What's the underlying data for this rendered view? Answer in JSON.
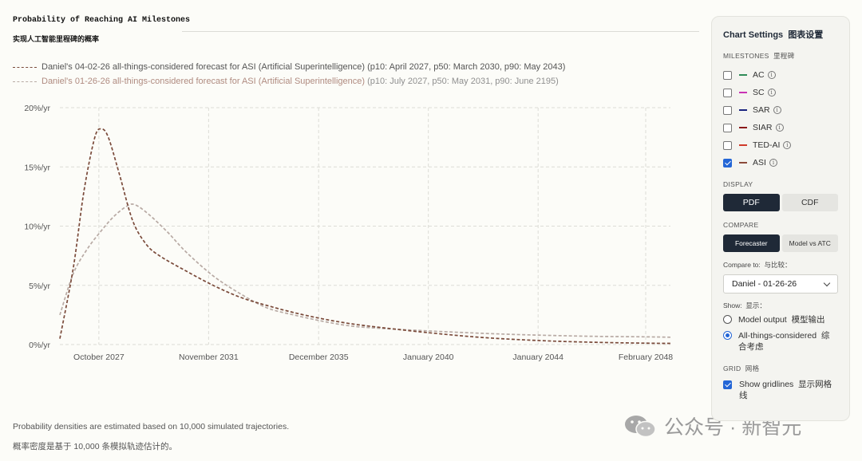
{
  "header": {
    "title": "Probability of Reaching AI Milestones",
    "subtitle": "实现人工智能里程碑的概率"
  },
  "legend": [
    {
      "name": "Daniel's 04-02-26 all-things-considered forecast for ASI (Artificial Superintelligence)",
      "detail": "(p10: April 2027, p50: March 2030, p90: May 2043)"
    },
    {
      "name": "Daniel's 01-26-26 all-things-considered forecast for ASI (Artificial Superintelligence)",
      "detail": "(p10: July 2027, p50: May 2031, p90: June 2195)"
    }
  ],
  "footnotes": {
    "en": "Probability densities are estimated based on 10,000 simulated trajectories.",
    "zh": "概率密度是基于 10,000 条模拟轨迹估计的。"
  },
  "watermark": "公众号 · 新智元",
  "colors": {
    "series1": "#7a4a3a",
    "series2": "#b8aaa4",
    "grid": "#dcdcd6",
    "accent": "#2466d6",
    "dark": "#1f2937"
  },
  "settings": {
    "title": "Chart Settings",
    "title_zh": "图表设置",
    "milestones_label": "MILESTONES",
    "milestones_label_zh": "里程碑",
    "milestones": [
      {
        "label": "AC",
        "color": "#2e8b57",
        "checked": false
      },
      {
        "label": "SC",
        "color": "#c832b4",
        "checked": false
      },
      {
        "label": "SAR",
        "color": "#1a237e",
        "checked": false
      },
      {
        "label": "SIAR",
        "color": "#8b1a1a",
        "checked": false
      },
      {
        "label": "TED-AI",
        "color": "#d03a2a",
        "checked": false
      },
      {
        "label": "ASI",
        "color": "#8b4a3a",
        "checked": true
      }
    ],
    "display_label": "DISPLAY",
    "display_options": [
      "PDF",
      "CDF"
    ],
    "display_selected": "PDF",
    "compare_label": "COMPARE",
    "compare_options": [
      "Forecaster",
      "Model vs ATC"
    ],
    "compare_selected": "Forecaster",
    "compare_to_label": "Compare to:",
    "compare_to_label_zh": "与比较：",
    "compare_to_value": "Daniel - 01-26-26",
    "show_label": "Show:",
    "show_label_zh": "显示：",
    "show_options": [
      {
        "label": "Model output",
        "label_zh": "模型输出",
        "selected": false
      },
      {
        "label": "All-things-considered",
        "label_zh": "综合考虑",
        "selected": true
      }
    ],
    "grid_label": "GRID",
    "grid_label_zh": "网格",
    "gridlines_label": "Show gridlines",
    "gridlines_label_zh": "显示网格线",
    "gridlines_checked": true
  },
  "chart_data": {
    "type": "line",
    "title": "Probability of Reaching AI Milestones",
    "ylabel": "",
    "xlabel": "",
    "ylim": [
      0,
      20
    ],
    "xlim": [
      2026.3,
      2049.0
    ],
    "grid": true,
    "legend_position": "top-left",
    "y_ticks": [
      {
        "value": 0,
        "label": "0%/yr"
      },
      {
        "value": 5,
        "label": "5%/yr"
      },
      {
        "value": 10,
        "label": "10%/yr"
      },
      {
        "value": 15,
        "label": "15%/yr"
      },
      {
        "value": 20,
        "label": "20%/yr"
      }
    ],
    "x_ticks": [
      {
        "value": 2027.75,
        "label": "October 2027"
      },
      {
        "value": 2031.83,
        "label": "November 2031"
      },
      {
        "value": 2035.92,
        "label": "December 2035"
      },
      {
        "value": 2040.0,
        "label": "January 2040"
      },
      {
        "value": 2044.08,
        "label": "January 2044"
      },
      {
        "value": 2048.08,
        "label": "February 2048"
      }
    ],
    "series": [
      {
        "name": "Daniel's 04-02-26 all-things-considered forecast for ASI (Artificial Superintelligence)",
        "dash": "dashed",
        "points": [
          [
            2026.3,
            0.5
          ],
          [
            2026.8,
            6.5
          ],
          [
            2027.2,
            13.0
          ],
          [
            2027.6,
            17.5
          ],
          [
            2027.85,
            18.2
          ],
          [
            2028.1,
            17.5
          ],
          [
            2028.5,
            14.5
          ],
          [
            2029.0,
            10.5
          ],
          [
            2029.5,
            8.5
          ],
          [
            2030.0,
            7.5
          ],
          [
            2031.0,
            6.2
          ],
          [
            2032.0,
            5.0
          ],
          [
            2033.0,
            4.0
          ],
          [
            2034.0,
            3.3
          ],
          [
            2035.0,
            2.7
          ],
          [
            2036.0,
            2.2
          ],
          [
            2037.0,
            1.8
          ],
          [
            2038.0,
            1.5
          ],
          [
            2040.0,
            1.0
          ],
          [
            2042.0,
            0.6
          ],
          [
            2044.0,
            0.35
          ],
          [
            2046.0,
            0.2
          ],
          [
            2048.0,
            0.12
          ],
          [
            2049.0,
            0.1
          ]
        ]
      },
      {
        "name": "Daniel's 01-26-26 all-things-considered forecast for ASI (Artificial Superintelligence)",
        "dash": "dashed",
        "points": [
          [
            2026.3,
            2.5
          ],
          [
            2026.8,
            6.0
          ],
          [
            2027.3,
            8.0
          ],
          [
            2027.8,
            9.5
          ],
          [
            2028.3,
            10.8
          ],
          [
            2028.8,
            11.7
          ],
          [
            2029.1,
            11.8
          ],
          [
            2029.6,
            11.0
          ],
          [
            2030.3,
            9.5
          ],
          [
            2031.0,
            7.8
          ],
          [
            2032.0,
            5.8
          ],
          [
            2033.0,
            4.3
          ],
          [
            2034.0,
            3.1
          ],
          [
            2035.0,
            2.5
          ],
          [
            2036.0,
            2.0
          ],
          [
            2037.0,
            1.6
          ],
          [
            2038.0,
            1.4
          ],
          [
            2040.0,
            1.15
          ],
          [
            2042.0,
            0.95
          ],
          [
            2044.0,
            0.8
          ],
          [
            2046.0,
            0.7
          ],
          [
            2048.0,
            0.65
          ],
          [
            2049.0,
            0.62
          ]
        ]
      }
    ]
  }
}
